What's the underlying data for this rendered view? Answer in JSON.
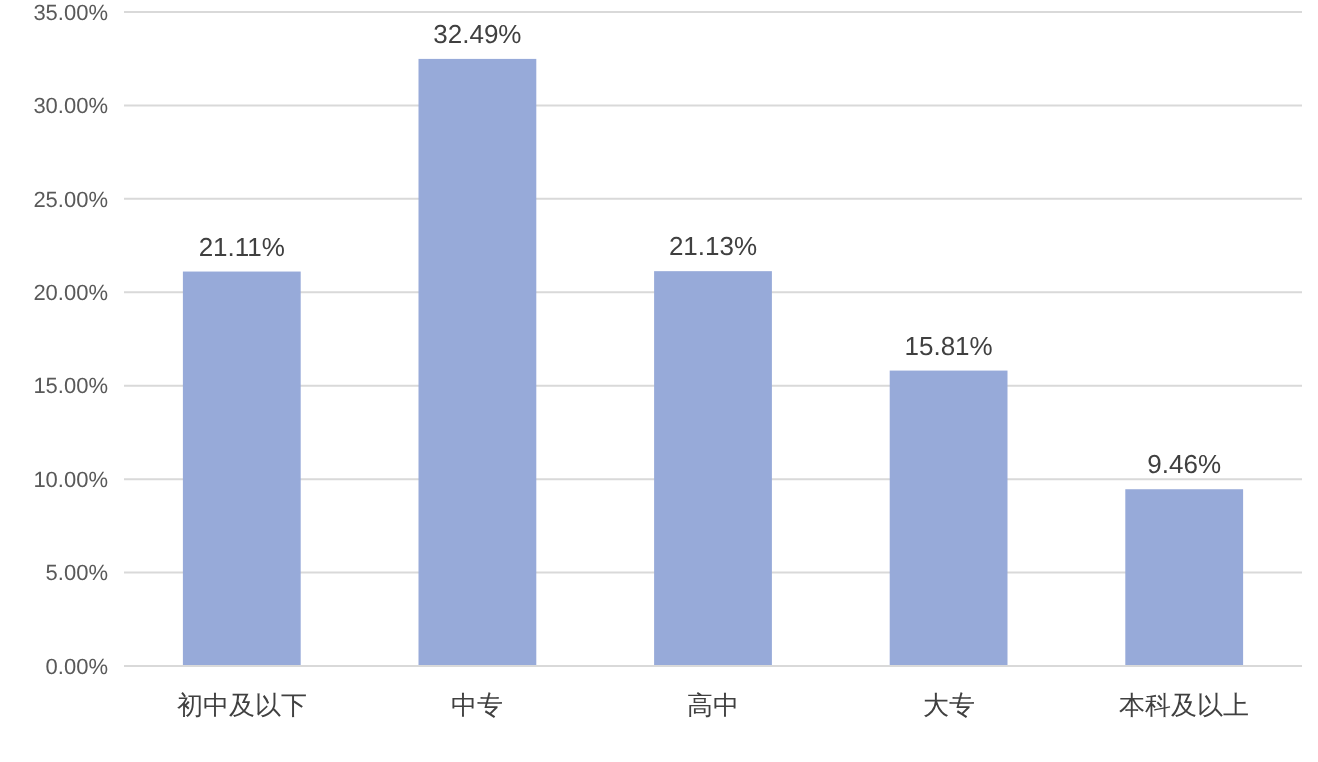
{
  "chart_data": {
    "type": "bar",
    "categories": [
      "初中及以下",
      "中专",
      "高中",
      "大专",
      "本科及以上"
    ],
    "values": [
      21.11,
      32.49,
      21.13,
      15.81,
      9.46
    ],
    "value_labels": [
      "21.11%",
      "32.49%",
      "21.13%",
      "15.81%",
      "9.46%"
    ],
    "color": "#97aad9",
    "ylim": [
      0,
      35
    ],
    "yticks": [
      {
        "value": 0,
        "label": "0.00%"
      },
      {
        "value": 5,
        "label": "5.00%"
      },
      {
        "value": 10,
        "label": "10.00%"
      },
      {
        "value": 15,
        "label": "15.00%"
      },
      {
        "value": 20,
        "label": "20.00%"
      },
      {
        "value": 25,
        "label": "25.00%"
      },
      {
        "value": 30,
        "label": "30.00%"
      },
      {
        "value": 35,
        "label": "35.00%"
      }
    ],
    "grid": "y"
  }
}
